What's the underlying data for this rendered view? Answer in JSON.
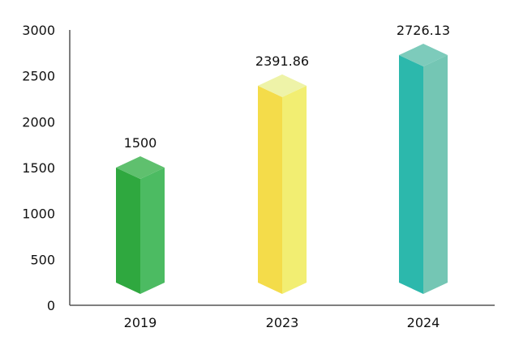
{
  "chart_data": {
    "type": "bar",
    "categories": [
      "2019",
      "2023",
      "2024"
    ],
    "values": [
      1500,
      2391.86,
      2726.13
    ],
    "value_labels": [
      "1500",
      "2391.86",
      "2726.13"
    ],
    "y_ticks": [
      "0",
      "500",
      "1000",
      "1500",
      "2000",
      "2500",
      "3000"
    ],
    "ylim": [
      0,
      3000
    ],
    "grid": false,
    "bar_style": "3d-prism",
    "colors": [
      {
        "front": "#2fa83f",
        "side": "#4cbb62",
        "top": "#5fc06e"
      },
      {
        "front": "#f4dc4a",
        "side": "#f2ee72",
        "top": "#eef3a8"
      },
      {
        "front": "#2cb8ac",
        "side": "#74c6b4",
        "top": "#7dcbbb"
      }
    ],
    "axis_color": "#555555"
  }
}
